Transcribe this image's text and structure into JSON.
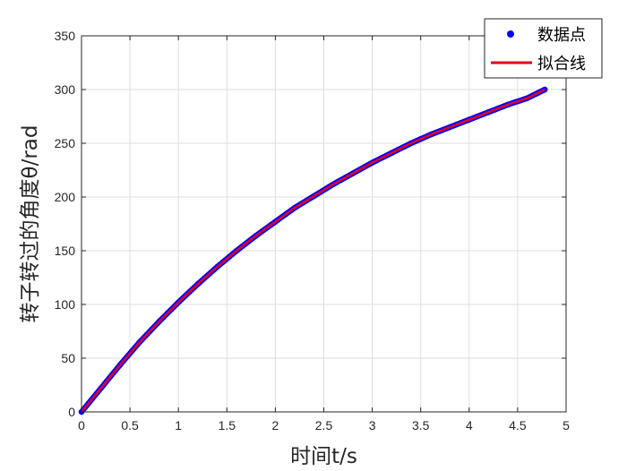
{
  "chart_data": {
    "type": "scatter",
    "title": "",
    "xlabel": "时间t/s",
    "ylabel": "转子转过的角度θ/rad",
    "xlim": [
      0,
      5
    ],
    "ylim": [
      0,
      350
    ],
    "xticks": [
      "0",
      "0.5",
      "1",
      "1.5",
      "2",
      "2.5",
      "3",
      "3.5",
      "4",
      "4.5",
      "5"
    ],
    "yticks": [
      "0",
      "50",
      "100",
      "150",
      "200",
      "250",
      "300",
      "350"
    ],
    "grid": true,
    "legend_position": "top-right",
    "colors": {
      "points": "#0000ff",
      "fit": "#e8001c"
    },
    "series": [
      {
        "name": "数据点",
        "style": "markers",
        "x": [
          0,
          0.2,
          0.4,
          0.6,
          0.8,
          1.0,
          1.2,
          1.4,
          1.6,
          1.8,
          2.0,
          2.2,
          2.4,
          2.6,
          2.8,
          3.0,
          3.2,
          3.4,
          3.6,
          3.8,
          4.0,
          4.2,
          4.4,
          4.6,
          4.78
        ],
        "y": [
          0,
          22,
          44,
          65,
          84,
          102,
          119,
          135,
          150,
          164,
          177,
          190,
          201,
          212,
          222,
          232,
          241,
          250,
          258,
          265,
          272,
          279,
          286,
          292,
          300
        ]
      },
      {
        "name": "拟合线",
        "style": "line",
        "x": [
          0,
          0.2,
          0.4,
          0.6,
          0.8,
          1.0,
          1.2,
          1.4,
          1.6,
          1.8,
          2.0,
          2.2,
          2.4,
          2.6,
          2.8,
          3.0,
          3.2,
          3.4,
          3.6,
          3.8,
          4.0,
          4.2,
          4.4,
          4.6,
          4.78
        ],
        "y": [
          0,
          22,
          44,
          65,
          84,
          102,
          119,
          135,
          150,
          164,
          177,
          190,
          201,
          212,
          222,
          232,
          241,
          250,
          258,
          265,
          272,
          279,
          286,
          292,
          300
        ]
      }
    ]
  }
}
